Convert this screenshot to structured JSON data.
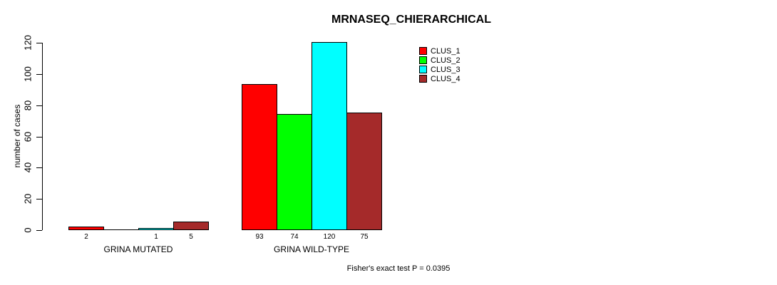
{
  "chart_data": {
    "type": "bar",
    "title": "MRNASEQ_CHIERARCHICAL",
    "ylabel": "number of cases",
    "xlabel": "",
    "annotation": "Fisher's exact test P = 0.0395",
    "ylim": [
      0,
      120
    ],
    "yticks": [
      "0",
      "20",
      "40",
      "60",
      "80",
      "100",
      "120"
    ],
    "grid": false,
    "legend_position": "top-right",
    "categories": [
      "GRINA MUTATED",
      "GRINA WILD-TYPE"
    ],
    "series": [
      {
        "name": "CLUS_1",
        "color": "#ff0000",
        "values": [
          2,
          93
        ]
      },
      {
        "name": "CLUS_2",
        "color": "#00ff00",
        "values": [
          0,
          74
        ]
      },
      {
        "name": "CLUS_3",
        "color": "#00ffff",
        "values": [
          1,
          120
        ]
      },
      {
        "name": "CLUS_4",
        "color": "#a52a2a",
        "values": [
          5,
          75
        ]
      }
    ],
    "bar_value_labels": [
      [
        "2",
        "",
        "1",
        "5"
      ],
      [
        "93",
        "74",
        "120",
        "75"
      ]
    ],
    "colors": {
      "axis": "#000000",
      "text": "#000000",
      "background": "#ffffff"
    }
  }
}
